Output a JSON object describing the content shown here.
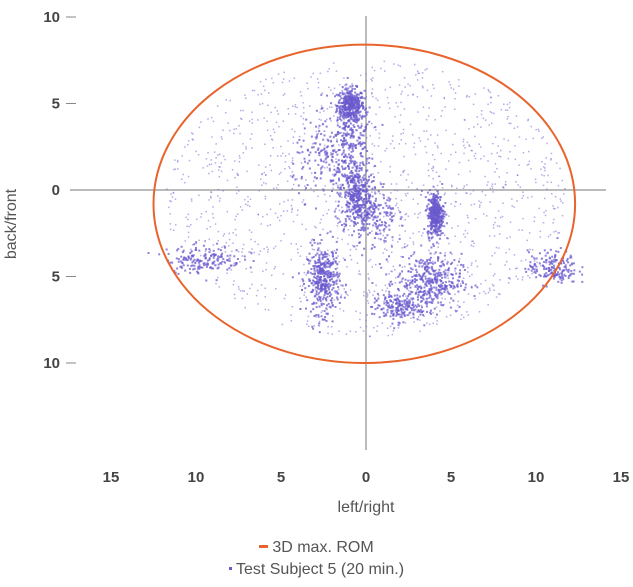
{
  "chart_data": {
    "type": "scatter",
    "xlabel": "left/right",
    "ylabel": "back/front",
    "xlim": [
      -15,
      15
    ],
    "ylim": [
      -15,
      10
    ],
    "x_ticks": [
      {
        "value": -15,
        "label": "15"
      },
      {
        "value": -10,
        "label": "10"
      },
      {
        "value": -5,
        "label": "5"
      },
      {
        "value": 0,
        "label": "0"
      },
      {
        "value": 5,
        "label": "5"
      },
      {
        "value": 10,
        "label": "10"
      },
      {
        "value": 15,
        "label": "15"
      }
    ],
    "y_ticks": [
      {
        "value": 10,
        "label": "10"
      },
      {
        "value": 5,
        "label": "5"
      },
      {
        "value": 0,
        "label": "0"
      },
      {
        "value": -5,
        "label": "5"
      },
      {
        "value": -10,
        "label": "10"
      }
    ],
    "grid": false,
    "legend_position": "bottom-center",
    "series": [
      {
        "name": "3D max. ROM",
        "kind": "ellipse",
        "color": "#E8642C",
        "center": [
          -0.1,
          -0.8
        ],
        "radius_x": 12.4,
        "radius_y": 9.2
      },
      {
        "name": "Test Subject 5 (20 min.)",
        "kind": "points",
        "color": "#6A5ACD",
        "clusters": [
          {
            "center": [
              -0.9,
              4.9
            ],
            "spread": [
              0.5,
              0.6
            ],
            "density": "high"
          },
          {
            "center": [
              -0.8,
              3.0
            ],
            "spread": [
              0.7,
              1.2
            ],
            "density": "medium"
          },
          {
            "center": [
              -0.6,
              -0.3
            ],
            "spread": [
              0.6,
              1.3
            ],
            "density": "high"
          },
          {
            "center": [
              -2.5,
              -5.2
            ],
            "spread": [
              0.6,
              1.2
            ],
            "density": "high"
          },
          {
            "center": [
              3.7,
              -5.3
            ],
            "spread": [
              1.2,
              1.0
            ],
            "density": "high"
          },
          {
            "center": [
              4.1,
              -1.4
            ],
            "spread": [
              0.3,
              0.8
            ],
            "density": "high"
          },
          {
            "center": [
              1.8,
              -6.8
            ],
            "spread": [
              0.9,
              0.5
            ],
            "density": "medium"
          },
          {
            "center": [
              11.0,
              -4.5
            ],
            "spread": [
              0.9,
              0.6
            ],
            "density": "medium"
          },
          {
            "center": [
              -9.5,
              -4.0
            ],
            "spread": [
              1.4,
              0.5
            ],
            "density": "medium"
          },
          {
            "center": [
              0.5,
              -1.5
            ],
            "spread": [
              0.8,
              1.2
            ],
            "density": "medium"
          },
          {
            "center": [
              -2.2,
              1.8
            ],
            "spread": [
              1.3,
              1.4
            ],
            "density": "medium"
          }
        ],
        "sparse_region": {
          "center": [
            0,
            -0.5
          ],
          "radius_x": 11.8,
          "radius_y": 8.0
        }
      }
    ]
  }
}
